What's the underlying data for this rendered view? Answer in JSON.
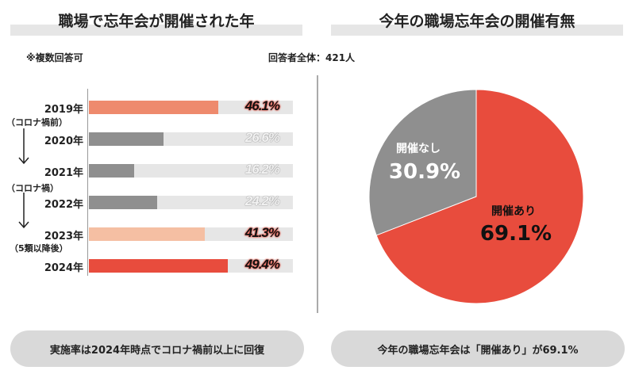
{
  "left": {
    "title": "職場で忘年会が開催された年",
    "note": "※複数回答可",
    "summary": "実施率は2024年時点でコロナ禍前以上に回復",
    "period_labels": [
      "（コロナ禍前）",
      "（コロナ禍）",
      "（5類以降後）"
    ]
  },
  "right": {
    "title": "今年の職場忘年会の開催有無",
    "respondents": "回答者全体：421人",
    "summary": "今年の職場忘年会は「開催あり」が69.1%"
  },
  "chart_data": [
    {
      "type": "bar",
      "orientation": "horizontal",
      "categories": [
        "2019年",
        "2020年",
        "2021年",
        "2022年",
        "2023年",
        "2024年"
      ],
      "values": [
        46.1,
        26.6,
        16.2,
        24.2,
        41.3,
        49.4
      ],
      "labels": [
        "46.1%",
        "26.6%",
        "16.2%",
        "24.2%",
        "41.3%",
        "49.4%"
      ],
      "colors": [
        "#ee8a6d",
        "#8f8f8f",
        "#8f8f8f",
        "#8f8f8f",
        "#f5bfa3",
        "#e84c3d"
      ]
    },
    {
      "type": "pie",
      "slices": [
        {
          "name": "開催あり",
          "value": 69.1,
          "label": "69.1%",
          "color": "#e84c3d"
        },
        {
          "name": "開催なし",
          "value": 30.9,
          "label": "30.9%",
          "color": "#8f8f8f"
        }
      ]
    }
  ]
}
